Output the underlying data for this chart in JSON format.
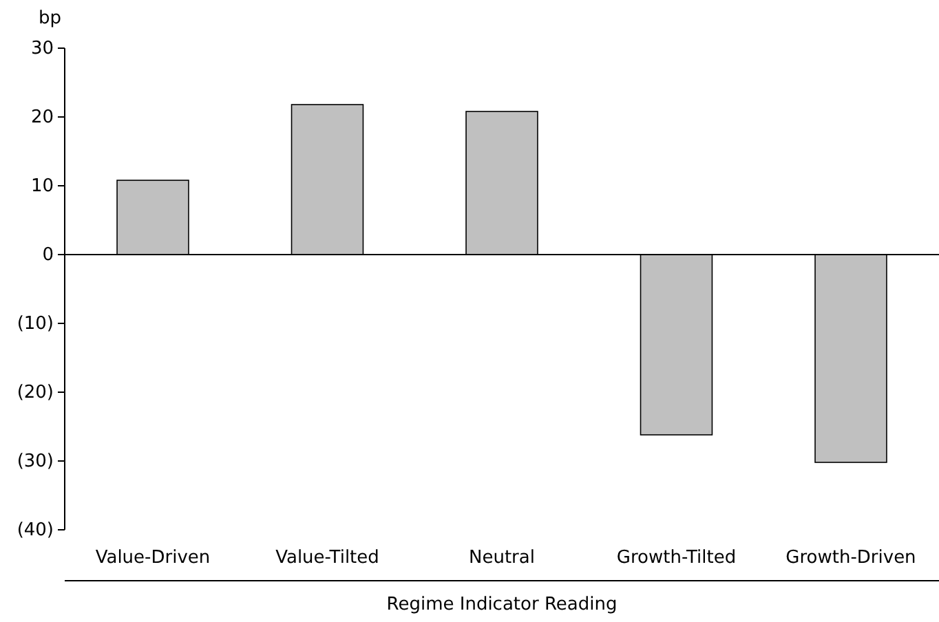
{
  "chart_data": {
    "type": "bar",
    "ylabel": "bp",
    "xlabel": "Regime Indicator Reading",
    "categories": [
      "Value-Driven",
      "Value-Tilted",
      "Neutral",
      "Growth-Tilted",
      "Growth-Driven"
    ],
    "values": [
      10.8,
      21.8,
      20.8,
      -26.2,
      -30.2
    ],
    "color": "#c0c0c0",
    "ylim": [
      -40,
      30
    ],
    "yticks": [
      {
        "value": -40,
        "label": "(40)"
      },
      {
        "value": -30,
        "label": "(30)"
      },
      {
        "value": -20,
        "label": "(20)"
      },
      {
        "value": -10,
        "label": "(10)"
      },
      0,
      10,
      20,
      30
    ]
  }
}
